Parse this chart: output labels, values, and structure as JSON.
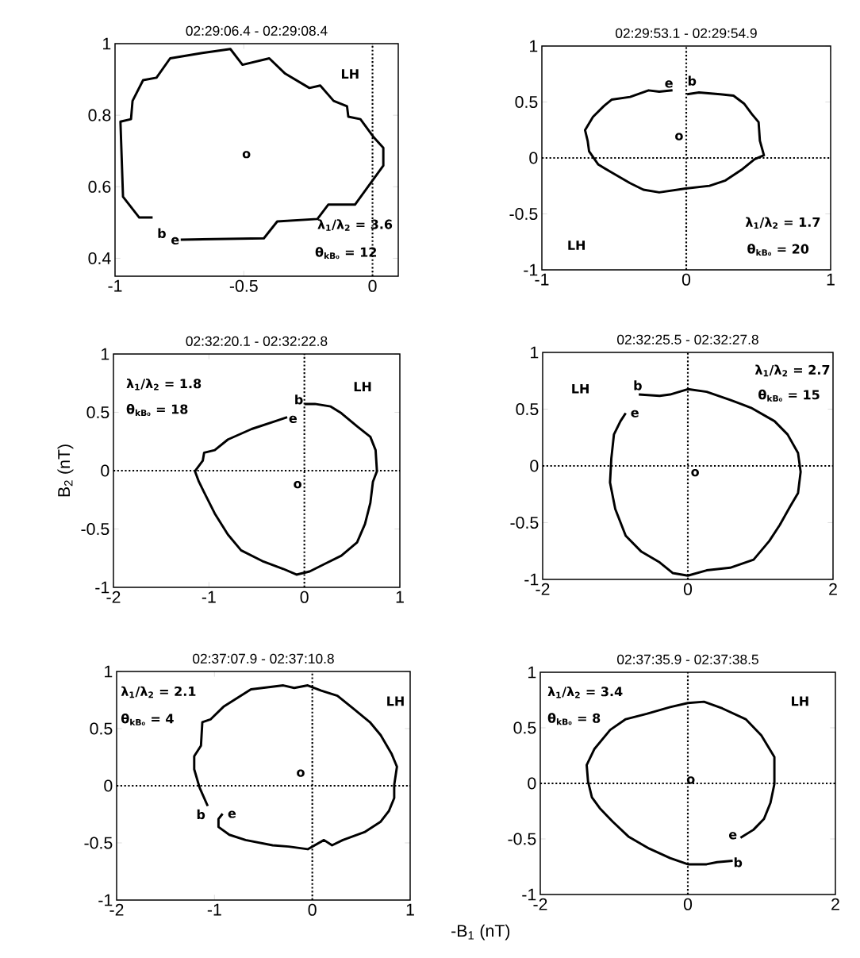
{
  "chart_data": [
    {
      "type": "line",
      "title": "02:29:06.4 - 02:29:08.4",
      "xlim": [
        -1,
        0.1
      ],
      "ylim": [
        0.35,
        1
      ],
      "xticks": [
        -1,
        -0.5,
        0
      ],
      "yticks": [
        0.4,
        0.6,
        0.8,
        1
      ],
      "series": [
        {
          "color": "#000000",
          "x": [
            -0.854,
            -0.906,
            -0.969,
            -0.979,
            -0.938,
            -0.932,
            -0.891,
            -0.839,
            -0.786,
            -0.661,
            -0.552,
            -0.505,
            -0.401,
            -0.339,
            -0.245,
            -0.203,
            -0.151,
            -0.099,
            -0.094,
            -0.047,
            0.005,
            0.042,
            0.042,
            -0.068,
            -0.172,
            -0.214,
            -0.37,
            -0.422,
            -0.745
          ],
          "values": [
            0.514,
            0.514,
            0.572,
            0.782,
            0.789,
            0.84,
            0.898,
            0.905,
            0.959,
            0.974,
            0.985,
            0.941,
            0.959,
            0.916,
            0.876,
            0.883,
            0.84,
            0.825,
            0.796,
            0.789,
            0.738,
            0.709,
            0.659,
            0.55,
            0.55,
            0.51,
            0.503,
            0.456,
            0.452
          ]
        }
      ],
      "ref_lines": [
        {
          "axis": "x",
          "value": 0,
          "line_style": "dotted"
        }
      ],
      "annotations": [
        "LH",
        "λ$_{1}$/λ$_{2}$ = 3.6",
        "θ$_{kB₀}$ = 12",
        "b",
        "e",
        "o"
      ]
    },
    {
      "type": "line",
      "title": "02:29:53.1 - 02:29:54.9",
      "xlim": [
        -1,
        1
      ],
      "ylim": [
        -1,
        1
      ],
      "xticks": [
        -1,
        0,
        1
      ],
      "yticks": [
        -1,
        -0.5,
        0,
        0.5,
        1
      ],
      "series": [
        {
          "color": "#000000",
          "x": [
            0.006,
            0.088,
            0.235,
            0.327,
            0.4,
            0.455,
            0.501,
            0.51,
            0.538,
            0.473,
            0.382,
            0.272,
            0.161,
            -0.004,
            -0.187,
            -0.297,
            -0.389,
            -0.517,
            -0.609,
            -0.673,
            -0.683,
            -0.701,
            -0.646,
            -0.572,
            -0.517,
            -0.389,
            -0.261,
            -0.187,
            -0.095
          ],
          "values": [
            0.569,
            0.585,
            0.569,
            0.557,
            0.486,
            0.391,
            0.32,
            0.154,
            0.024,
            -0.012,
            -0.107,
            -0.201,
            -0.249,
            -0.273,
            -0.308,
            -0.284,
            -0.225,
            -0.13,
            -0.059,
            0.059,
            0.154,
            0.249,
            0.367,
            0.462,
            0.521,
            0.545,
            0.604,
            0.592,
            0.604
          ]
        }
      ],
      "ref_lines": [
        {
          "axis": "x",
          "value": 0,
          "line_style": "dotted"
        },
        {
          "axis": "y",
          "value": 0,
          "line_style": "dotted"
        }
      ],
      "annotations": [
        "LH",
        "λ$_{1}$/λ$_{2}$ = 1.7",
        "θ$_{kB₀}$ = 20",
        "e",
        "b",
        "o"
      ]
    },
    {
      "type": "line",
      "title": "02:32:20.1 - 02:32:22.8",
      "ylabel": "B$_{2}$ (nT)",
      "xlim": [
        -2,
        1
      ],
      "ylim": [
        -1,
        1
      ],
      "xticks": [
        -2,
        -1,
        0,
        1
      ],
      "yticks": [
        -1,
        -0.5,
        0,
        0.5,
        1
      ],
      "series": [
        {
          "color": "#000000",
          "x": [
            0,
            0.11,
            0.276,
            0.387,
            0.552,
            0.691,
            0.746,
            0.76,
            0.718,
            0.691,
            0.635,
            0.552,
            0.387,
            0.221,
            0.055,
            -0.083,
            -0.221,
            -0.442,
            -0.663,
            -0.801,
            -0.939,
            -1.05,
            -1.105,
            -1.146,
            -1.064,
            -1.05,
            -0.939,
            -0.801,
            -0.552,
            -0.304,
            -0.18
          ],
          "values": [
            0.572,
            0.572,
            0.55,
            0.493,
            0.38,
            0.29,
            0.176,
            -0.005,
            -0.095,
            -0.276,
            -0.457,
            -0.615,
            -0.729,
            -0.796,
            -0.864,
            -0.891,
            -0.842,
            -0.774,
            -0.683,
            -0.548,
            -0.367,
            -0.186,
            -0.095,
            -0.005,
            0.086,
            0.154,
            0.176,
            0.267,
            0.357,
            0.425,
            0.459
          ]
        }
      ],
      "ref_lines": [
        {
          "axis": "x",
          "value": 0,
          "line_style": "dotted"
        },
        {
          "axis": "y",
          "value": 0,
          "line_style": "dotted"
        }
      ],
      "annotations": [
        "LH",
        "λ$_{1}$/λ$_{2}$ = 1.8",
        "θ$_{kB₀}$ = 18",
        "e",
        "b",
        "o"
      ]
    },
    {
      "type": "line",
      "title": "02:32:25.5 - 02:32:27.8",
      "xlim": [
        -2,
        2
      ],
      "ylim": [
        -1,
        1
      ],
      "xticks": [
        -2,
        0,
        2
      ],
      "yticks": [
        -1,
        -0.5,
        0,
        0.5,
        1
      ],
      "series": [
        {
          "color": "#000000",
          "x": [
            -0.676,
            -0.388,
            -0.245,
            0,
            0.259,
            0.583,
            0.871,
            1.194,
            1.374,
            1.518,
            1.554,
            1.518,
            1.41,
            1.266,
            1.122,
            0.906,
            0.583,
            0.259,
            0,
            -0.209,
            -0.388,
            -0.64,
            -0.856,
            -1.0,
            -1.072,
            -1.054,
            -1.018,
            -0.928,
            -0.856
          ],
          "values": [
            0.629,
            0.617,
            0.629,
            0.676,
            0.653,
            0.582,
            0.512,
            0.394,
            0.277,
            0.113,
            -0.052,
            -0.239,
            -0.357,
            -0.521,
            -0.662,
            -0.826,
            -0.897,
            -0.92,
            -0.967,
            -0.944,
            -0.85,
            -0.756,
            -0.615,
            -0.38,
            -0.146,
            0.066,
            0.277,
            0.394,
            0.465
          ]
        }
      ],
      "ref_lines": [
        {
          "axis": "x",
          "value": 0,
          "line_style": "dotted"
        },
        {
          "axis": "y",
          "value": 0,
          "line_style": "dotted"
        }
      ],
      "annotations": [
        "LH",
        "λ$_{1}$/λ$_{2}$ = 2.7",
        "θ$_{kB₀}$ = 15",
        "b",
        "e",
        "o"
      ]
    },
    {
      "type": "line",
      "title": "02:37:07.9 - 02:37:10.8",
      "xlabel": "-B$_{1}$ (nT)",
      "xlim": [
        -2,
        1
      ],
      "ylim": [
        -1,
        1
      ],
      "xticks": [
        -2,
        -1,
        0,
        1
      ],
      "yticks": [
        -1,
        -0.5,
        0,
        0.5,
        1
      ],
      "series": [
        {
          "color": "#000000",
          "x": [
            -1.069,
            -1.152,
            -1.207,
            -1.207,
            -1.138,
            -1.124,
            -1.041,
            -0.903,
            -0.627,
            -0.296,
            -0.185,
            -0.047,
            0.091,
            0.257,
            0.423,
            0.588,
            0.699,
            0.809,
            0.865,
            0.837,
            0.837,
            0.782,
            0.699,
            0.533,
            0.312,
            0.202,
            0.119,
            -0.047,
            -0.24,
            -0.406,
            -0.682,
            -0.848,
            -0.959,
            -0.959,
            -0.917
          ],
          "values": [
            -0.177,
            -0.016,
            0.144,
            0.259,
            0.351,
            0.557,
            0.58,
            0.695,
            0.844,
            0.878,
            0.856,
            0.878,
            0.833,
            0.787,
            0.672,
            0.557,
            0.443,
            0.282,
            0.167,
            0.007,
            -0.108,
            -0.222,
            -0.314,
            -0.406,
            -0.475,
            -0.521,
            -0.475,
            -0.555,
            -0.532,
            -0.521,
            -0.475,
            -0.429,
            -0.36,
            -0.291,
            -0.245
          ]
        }
      ],
      "ref_lines": [
        {
          "axis": "x",
          "value": 0,
          "line_style": "dotted"
        },
        {
          "axis": "y",
          "value": 0,
          "line_style": "dotted"
        }
      ],
      "annotations": [
        "LH",
        "λ$_{1}$/λ$_{2}$ = 2.1",
        "θ$_{kB₀}$ = 4",
        "b",
        "e",
        "o"
      ]
    },
    {
      "type": "line",
      "title": "02:37:35.9 - 02:37:38.5",
      "xlim": [
        -2,
        2
      ],
      "ylim": [
        -1,
        1
      ],
      "xticks": [
        -2,
        0,
        2
      ],
      "yticks": [
        -1,
        -0.5,
        0,
        0.5,
        1
      ],
      "series": [
        {
          "color": "#000000",
          "x": [
            0.608,
            0.396,
            0.254,
            0,
            -0.24,
            -0.523,
            -0.806,
            -1.018,
            -1.194,
            -1.3,
            -1.353,
            -1.371,
            -1.265,
            -1.053,
            -0.841,
            -0.558,
            -0.24,
            0,
            0.219,
            0.466,
            0.784,
            0.996,
            1.173,
            1.173,
            1.12,
            1.032,
            0.89,
            0.714
          ],
          "values": [
            -0.697,
            -0.709,
            -0.728,
            -0.728,
            -0.672,
            -0.587,
            -0.478,
            -0.345,
            -0.223,
            -0.126,
            0.019,
            0.165,
            0.311,
            0.481,
            0.578,
            0.626,
            0.687,
            0.723,
            0.735,
            0.675,
            0.578,
            0.432,
            0.238,
            -0.005,
            -0.175,
            -0.32,
            -0.417,
            -0.49
          ]
        }
      ],
      "ref_lines": [
        {
          "axis": "x",
          "value": 0,
          "line_style": "dotted"
        },
        {
          "axis": "y",
          "value": 0,
          "line_style": "dotted"
        }
      ],
      "annotations": [
        "LH",
        "λ$_{1}$/λ$_{2}$ = 3.4",
        "θ$_{kB₀}$ = 8",
        "b",
        "e",
        "o"
      ]
    }
  ]
}
